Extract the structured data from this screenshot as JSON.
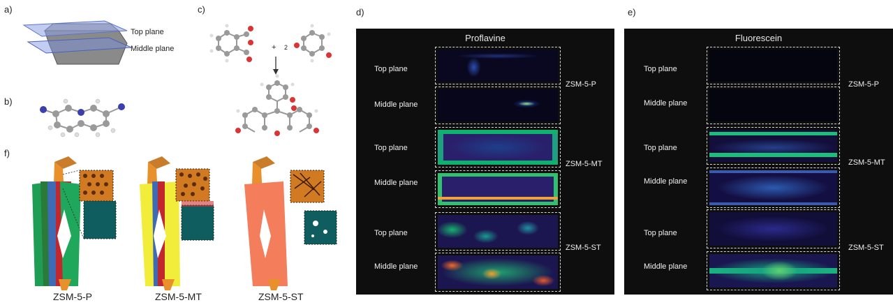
{
  "panel_labels": {
    "a": "a)",
    "b": "b)",
    "c": "c)",
    "d": "d)",
    "e": "e)",
    "f": "f)"
  },
  "panel_a": {
    "top_plane": "Top plane",
    "middle_plane": "Middle plane"
  },
  "panel_c": {
    "plus": "+",
    "coefficient": "2"
  },
  "panel_f": {
    "crystals": [
      "ZSM-5-P",
      "ZSM-5-MT",
      "ZSM-5-ST"
    ]
  },
  "panel_d": {
    "title": "Proflavine",
    "rows": [
      "Top plane",
      "Middle plane",
      "Top plane",
      "Middle plane",
      "Top plane",
      "Middle plane"
    ],
    "samples": [
      "ZSM-5-P",
      "ZSM-5-MT",
      "ZSM-5-ST"
    ]
  },
  "panel_e": {
    "title": "Fluorescein",
    "rows": [
      "Top plane",
      "Middle plane",
      "Top plane",
      "Middle plane",
      "Top plane",
      "Middle plane"
    ],
    "samples": [
      "ZSM-5-P",
      "ZSM-5-MT",
      "ZSM-5-ST"
    ]
  },
  "colors": {
    "panel_bg": "#0e0e0e",
    "orange": "#e8902c",
    "green": "#1f9d55",
    "yellow": "#f2ec3a",
    "salmon": "#f47d5c",
    "teal": "#0f5d5e"
  }
}
